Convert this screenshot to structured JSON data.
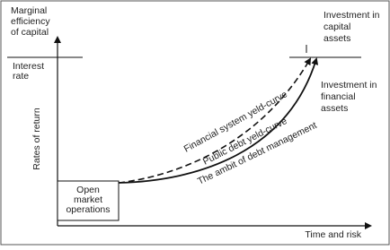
{
  "y_axis_top_label": [
    "Marginal",
    "efficiency",
    "of capital"
  ],
  "interest_label": [
    "Interest",
    "rate"
  ],
  "y_axis_label": "Rates of return",
  "x_axis_label": "Time and risk",
  "box_label": [
    "Open",
    "market",
    "operations"
  ],
  "curve_labels": [
    "Financial system yeld-curve",
    "Public debt yeld-curve",
    "The ambit of debt management"
  ],
  "capital_label": [
    "Investment in",
    "capital",
    "assets"
  ],
  "financial_label": [
    "Investment in",
    "financial",
    "assets"
  ]
}
